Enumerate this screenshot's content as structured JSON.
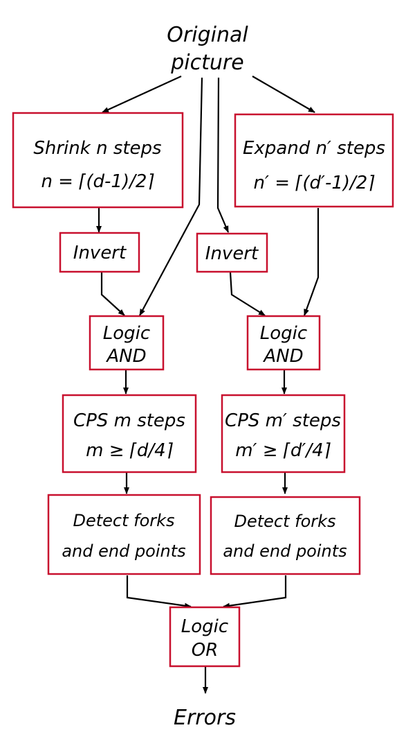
{
  "diagram": {
    "input_label_line1": "Original",
    "input_label_line2": "picture",
    "left": {
      "shrink_line1": "Shrink n steps",
      "shrink_line2": "n = ⌈(d-1)/2⌉",
      "invert": "Invert",
      "and_line1": "Logic",
      "and_line2": "AND",
      "cps_line1": "CPS m steps",
      "cps_line2": "m ≥ ⌈d/4⌉",
      "detect_line1": "Detect forks",
      "detect_line2": "and end points"
    },
    "right": {
      "expand_line1": "Expand n′ steps",
      "expand_line2": "n′ = ⌈(d′-1)/2⌉",
      "invert": "Invert",
      "and_line1": "Logic",
      "and_line2": "AND",
      "cps_line1": "CPS m′ steps",
      "cps_line2": "m′ ≥ ⌈d′/4⌉",
      "detect_line1": "Detect forks",
      "detect_line2": "and end points"
    },
    "or_line1": "Logic",
    "or_line2": "OR",
    "output_label": "Errors"
  }
}
